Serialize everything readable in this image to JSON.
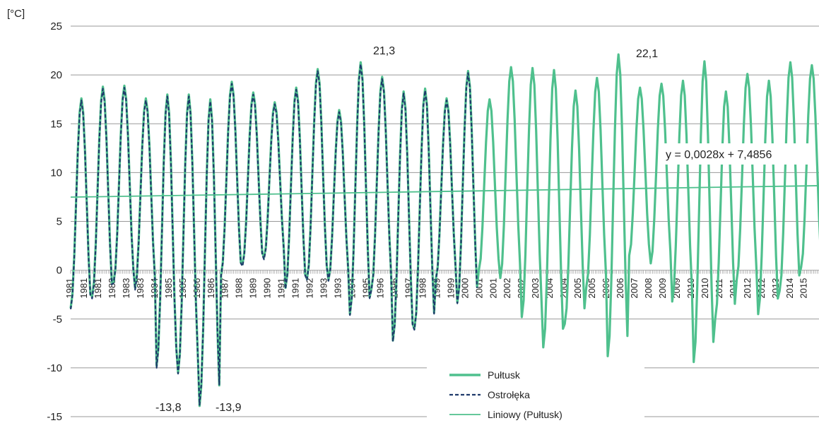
{
  "chart_data": {
    "type": "line",
    "ylabel": "[°C]",
    "ylim": [
      -15,
      25
    ],
    "yticks": [
      25,
      20,
      15,
      10,
      5,
      0,
      -5,
      -10,
      -15
    ],
    "grid": "horizontal",
    "legend_position": "bottom-right",
    "x_tick_labels": [
      "1981",
      "1981",
      "1981",
      "1982",
      "1983",
      "1983",
      "1984",
      "1985",
      "1985",
      "1986",
      "1986",
      "1987",
      "1988",
      "1989",
      "1990",
      "1991",
      "1991",
      "1992",
      "1993",
      "1993",
      "1994",
      "1995",
      "1996",
      "1996",
      "1997",
      "1998",
      "1999",
      "1999",
      "2000",
      "2001",
      "2001",
      "2002",
      "2002",
      "2003",
      "2004",
      "2004",
      "2005",
      "2005",
      "2006",
      "2006",
      "2007",
      "2008",
      "2009",
      "2009",
      "2010",
      "2010",
      "2011",
      "2011",
      "2012",
      "2012",
      "2013",
      "2014",
      "2015"
    ],
    "annotations": [
      {
        "text": "21,3",
        "x": 1994.5,
        "y": 21.3
      },
      {
        "text": "22,1",
        "x": 2006.5,
        "y": 22.1
      },
      {
        "text": "-13,8",
        "x": 1986.5,
        "y": -13.8
      },
      {
        "text": "-13,9",
        "x": 1987.0,
        "y": -13.9
      }
    ],
    "trendline_equation": "y = 0,0028x + 7,4856",
    "series": [
      {
        "name": "Pułtusk",
        "style": "solid-thick",
        "color": "#4fc08d",
        "years": [
          1981,
          1982,
          1983,
          1984,
          1985,
          1986,
          1987,
          1988,
          1989,
          1990,
          1991,
          1992,
          1993,
          1994,
          1995,
          1996,
          1997,
          1998,
          1999,
          2000,
          2001,
          2002,
          2003,
          2004,
          2005,
          2006,
          2007,
          2008,
          2009,
          2010,
          2011,
          2012,
          2013,
          2014,
          2015
        ],
        "jan": [
          -3.9,
          -2.7,
          -1.2,
          -1.8,
          -9.8,
          -10.5,
          -13.9,
          -0.5,
          0.6,
          1.3,
          -1.8,
          -0.9,
          -1.0,
          -4.5,
          -1.9,
          -7.2,
          -6.0,
          -0.9,
          -3.3,
          0.0,
          -0.8,
          -4.8,
          -7.9,
          -5.5,
          -1.8,
          -8.8,
          1.5,
          0.7,
          -3.2,
          -9.4,
          -5.0,
          -1.0,
          -4.5,
          -2.1,
          0.3
        ],
        "jul": [
          17.6,
          18.8,
          18.9,
          17.6,
          18.0,
          18.0,
          17.5,
          19.3,
          18.2,
          17.2,
          18.7,
          20.6,
          16.4,
          21.3,
          19.8,
          18.3,
          18.6,
          17.6,
          20.4,
          17.5,
          20.8,
          20.7,
          20.5,
          18.4,
          19.7,
          22.1,
          18.7,
          19.1,
          19.4,
          21.4,
          18.3,
          20.1,
          19.4,
          21.3,
          21.0
        ]
      },
      {
        "name": "Ostrołęka",
        "style": "dashed",
        "color": "#1f3a6b",
        "years": [
          1981,
          1982,
          1983,
          1984,
          1985,
          1986,
          1987,
          1988,
          1989,
          1990,
          1991,
          1992,
          1993,
          1994,
          1995,
          1996,
          1997,
          1998,
          1999
        ],
        "jan": [
          -4.0,
          -2.9,
          -1.3,
          -2.0,
          -10.0,
          -10.6,
          -13.8,
          -0.6,
          0.4,
          1.1,
          -1.9,
          -1.0,
          -1.1,
          -4.6,
          -2.0,
          -7.3,
          -6.1,
          -1.0,
          -3.4
        ],
        "jul": [
          17.4,
          18.6,
          18.7,
          17.4,
          17.8,
          17.8,
          17.3,
          19.1,
          18.0,
          17.0,
          18.5,
          20.4,
          16.2,
          21.1,
          19.6,
          18.1,
          18.4,
          17.4,
          20.2
        ]
      },
      {
        "name": "Liniowy (Pułtusk)",
        "style": "trend",
        "color": "#4fc08d",
        "intercept": 7.4856,
        "slope_per_month": 0.0028
      }
    ]
  }
}
